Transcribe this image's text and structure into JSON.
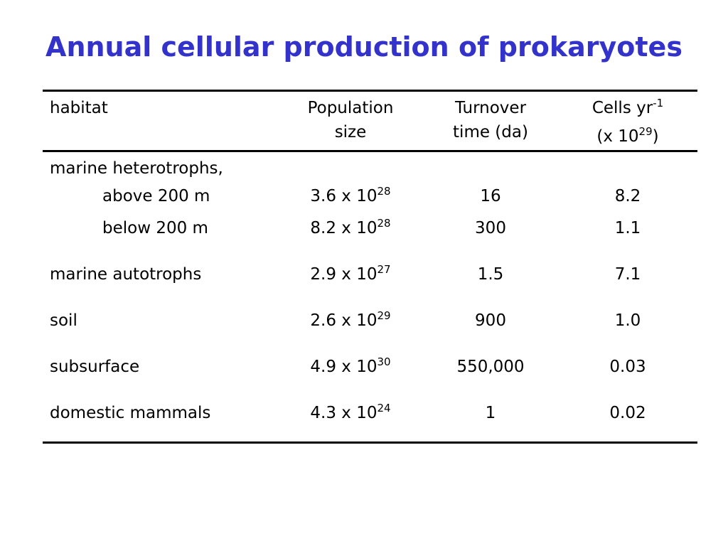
{
  "title": "Annual cellular production of prokaryotes",
  "header": {
    "habitat": "habitat",
    "population_line1": "Population",
    "population_line2": "size",
    "turnover_line1": "Turnover",
    "turnover_line2": "time (da)",
    "cells_line1_base": "Cells yr",
    "cells_line1_sup": "-1",
    "cells_line2_open": "(x 10",
    "cells_line2_sup": "29",
    "cells_line2_close": ")"
  },
  "group_label": "marine heterotrophs,",
  "rows": [
    {
      "habitat": "above 200 m",
      "pop_base": "3.6 x 10",
      "pop_exp": "28",
      "turnover": "16",
      "cells": "8.2"
    },
    {
      "habitat": "below 200 m",
      "pop_base": "8.2 x 10",
      "pop_exp": "28",
      "turnover": "300",
      "cells": "1.1"
    },
    {
      "habitat": "marine autotrophs",
      "pop_base": "2.9 x 10",
      "pop_exp": "27",
      "turnover": "1.5",
      "cells": "7.1"
    },
    {
      "habitat": "soil",
      "pop_base": "2.6 x 10",
      "pop_exp": "29",
      "turnover": "900",
      "cells": "1.0"
    },
    {
      "habitat": "subsurface",
      "pop_base": "4.9 x 10",
      "pop_exp": "30",
      "turnover": "550,000",
      "cells": "0.03"
    },
    {
      "habitat": "domestic mammals",
      "pop_base": "4.3 x 10",
      "pop_exp": "24",
      "turnover": "1",
      "cells": "0.02"
    }
  ],
  "colors": {
    "title": "#3333cc",
    "text": "#000000"
  }
}
